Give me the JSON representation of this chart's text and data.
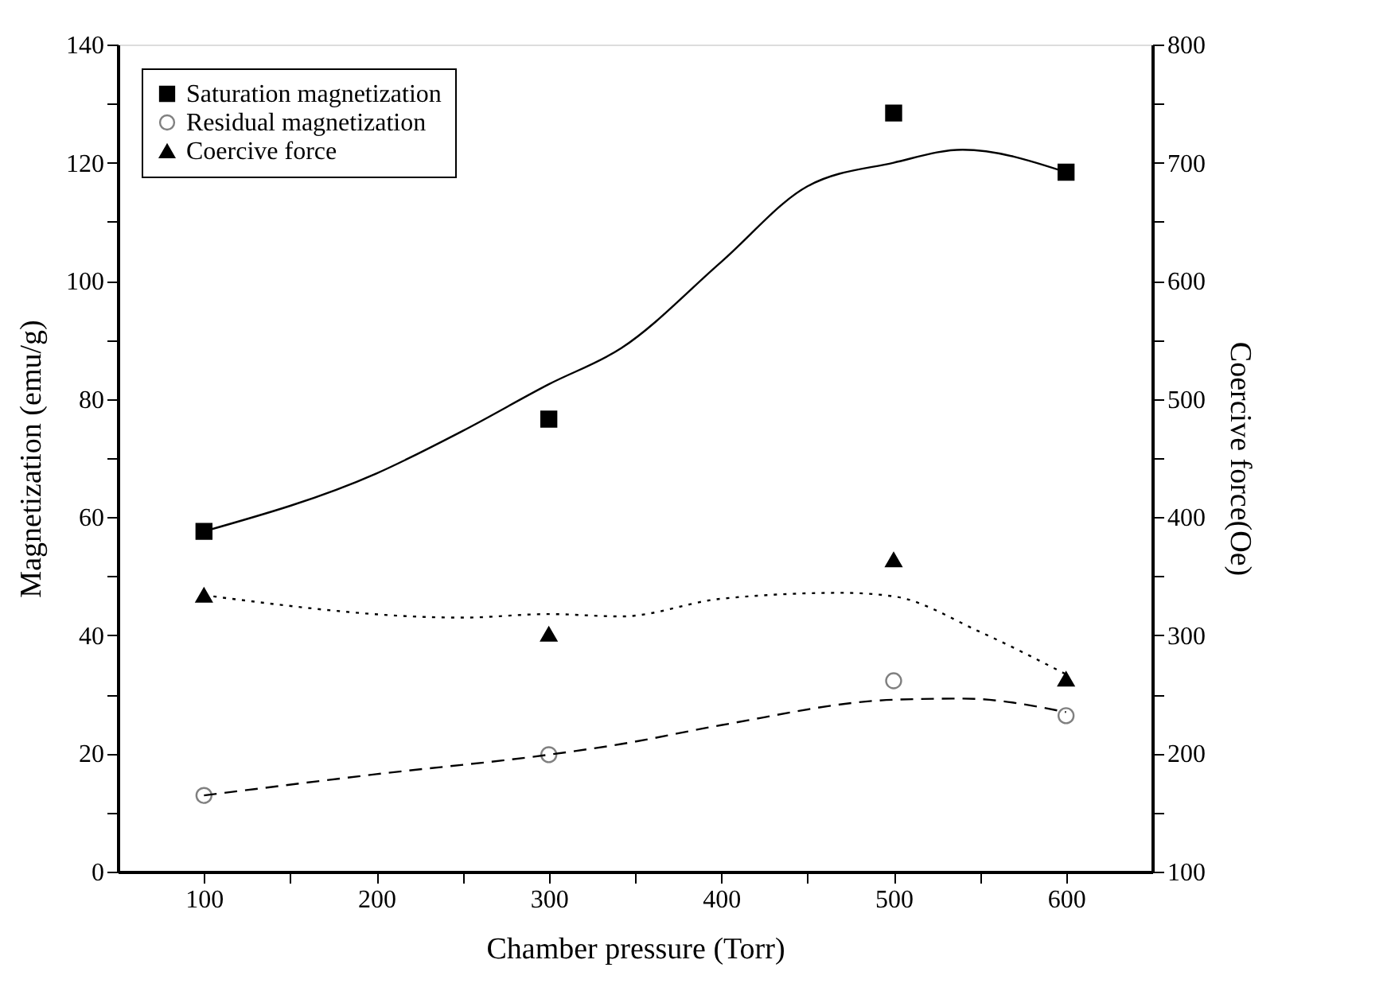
{
  "chart_data": {
    "type": "scatter",
    "xlabel": "Chamber pressure (Torr)",
    "ylabel": "Magnetization (emu/g)",
    "y2label": "Coercive force(Oe)",
    "xlim": [
      50,
      650
    ],
    "xticks": [
      {
        "value": 100,
        "label": "100"
      },
      {
        "value": 150,
        "label": null
      },
      {
        "value": 200,
        "label": "200"
      },
      {
        "value": 250,
        "label": null
      },
      {
        "value": 300,
        "label": "300"
      },
      {
        "value": 350,
        "label": null
      },
      {
        "value": 400,
        "label": "400"
      },
      {
        "value": 450,
        "label": null
      },
      {
        "value": 500,
        "label": "500"
      },
      {
        "value": 550,
        "label": null
      },
      {
        "value": 600,
        "label": "600"
      }
    ],
    "ylim": [
      0,
      140
    ],
    "yticks": [
      0,
      {
        "value": 10,
        "label": null
      },
      20,
      {
        "value": 30,
        "label": null
      },
      40,
      {
        "value": 50,
        "label": null
      },
      60,
      {
        "value": 70,
        "label": null
      },
      80,
      {
        "value": 90,
        "label": null
      },
      100,
      {
        "value": 110,
        "label": null
      },
      120,
      {
        "value": 130,
        "label": null
      },
      140
    ],
    "y2lim": [
      100,
      800
    ],
    "y2ticks": [
      100,
      {
        "value": 150,
        "label": null
      },
      200,
      {
        "value": 250,
        "label": null
      },
      300,
      {
        "value": 350,
        "label": null
      },
      400,
      {
        "value": 450,
        "label": null
      },
      500,
      {
        "value": 550,
        "label": null
      },
      600,
      {
        "value": 650,
        "label": null
      },
      700,
      {
        "value": 750,
        "label": null
      },
      800
    ],
    "grid": false,
    "legend": "top left",
    "series": [
      {
        "name": "Saturation magnetization",
        "marker": "square",
        "color": "#000000",
        "x": [
          100,
          300,
          500,
          600
        ],
        "values": [
          57.6,
          76.6,
          128.4,
          118.4
        ]
      },
      {
        "name": "Residual magnetization",
        "marker": "circle",
        "color": "#808080",
        "x": [
          100,
          300,
          500,
          600
        ],
        "values": [
          12.9,
          19.8,
          32.3,
          26.4
        ]
      },
      {
        "name": "Coercive force",
        "marker": "triangle",
        "axis": "y2",
        "color": "#000000",
        "x": [
          100,
          300,
          500,
          600
        ],
        "values": [
          334,
          301,
          364,
          263
        ]
      },
      {
        "type": "line",
        "line_style": "solid",
        "marker": "none",
        "color": "#000000",
        "x": [
          100,
          200,
          250,
          300,
          342,
          400,
          450,
          500,
          540,
          600
        ],
        "values": [
          57.6,
          67.4,
          74.6,
          82.5,
          88.6,
          103.2,
          116,
          120,
          122.2,
          118.4
        ]
      },
      {
        "type": "line",
        "line_style": "dashed",
        "marker": "none",
        "color": "#000000",
        "x": [
          100,
          200,
          300,
          342,
          400,
          500,
          540,
          600
        ],
        "values": [
          12.9,
          16.5,
          19.8,
          21.6,
          24.8,
          29.1,
          29.3,
          27
        ]
      },
      {
        "type": "line",
        "line_style": "dotted",
        "marker": "none",
        "axis": "y2",
        "color": "#000000",
        "x": [
          100,
          250,
          300,
          342,
          400,
          470,
          500,
          550,
          600
        ],
        "values": [
          334,
          315,
          318,
          316,
          331,
          336,
          333,
          303,
          267
        ]
      }
    ]
  }
}
